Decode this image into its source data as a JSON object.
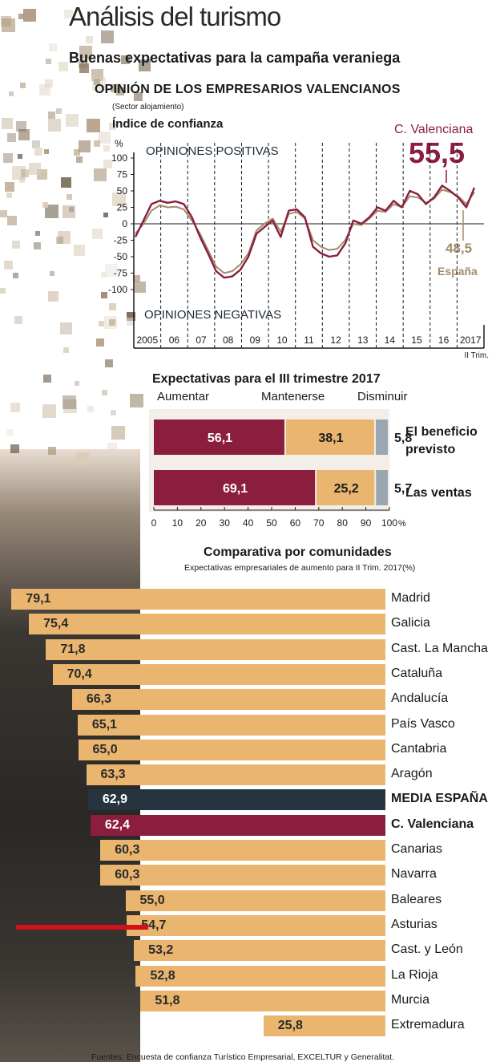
{
  "header": {
    "title": "Análisis del turismo",
    "subtitle": "Buenas expectativas para la campaña veraniega"
  },
  "colors": {
    "cv": "#8b1e3f",
    "espana": "#a08c6a",
    "aumentar": "#8b1e3f",
    "mantenerse": "#e9b56f",
    "disminuir": "#9aa6b0",
    "media": "#25343f",
    "bars": "#e9b56f",
    "highlight_line": "#d0121b"
  },
  "chart_data": [
    {
      "type": "line",
      "title": "OPINIÓN DE LOS EMPRESARIOS VALENCIANOS",
      "subtitle": "(Sector alojamiento)",
      "ylabel": "Índice de confianza",
      "yunit": "%",
      "ylim": [
        -100,
        100
      ],
      "yticks": [
        "100",
        "75",
        "50",
        "25",
        "0",
        "-25",
        "-50",
        "-75",
        "-100"
      ],
      "xticks": [
        "2005",
        "06",
        "07",
        "08",
        "09",
        "10",
        "11",
        "12",
        "13",
        "14",
        "15",
        "16",
        "2017"
      ],
      "xnote": "II Trim.",
      "annotation_top": "OPINIONES POSITIVAS",
      "annotation_bottom": "OPINIONES NEGATIVAS",
      "series": [
        {
          "name": "C. Valenciana",
          "last_value": "55,5",
          "values": [
            -20,
            5,
            30,
            35,
            32,
            34,
            30,
            10,
            -20,
            -45,
            -72,
            -82,
            -80,
            -70,
            -50,
            -15,
            -5,
            5,
            -20,
            20,
            22,
            10,
            -35,
            -45,
            -50,
            -48,
            -30,
            5,
            0,
            10,
            25,
            20,
            35,
            25,
            50,
            45,
            30,
            40,
            58,
            50,
            40,
            25,
            55
          ]
        },
        {
          "name": "España",
          "last_value": "48,5",
          "values": [
            -15,
            0,
            20,
            28,
            25,
            26,
            22,
            5,
            -15,
            -40,
            -65,
            -75,
            -72,
            -62,
            -45,
            -10,
            0,
            8,
            -12,
            15,
            18,
            8,
            -25,
            -35,
            -40,
            -38,
            -25,
            0,
            -2,
            8,
            20,
            18,
            30,
            25,
            42,
            40,
            32,
            38,
            52,
            48,
            42,
            30,
            48
          ]
        }
      ]
    },
    {
      "type": "bar",
      "title": "Expectativas para el III trimestre 2017",
      "stacked": true,
      "orientation": "horizontal",
      "categories": [
        "El beneficio previsto",
        "Las ventas"
      ],
      "series": [
        {
          "name": "Aumentar",
          "values": [
            56.1,
            69.1
          ],
          "labels": [
            "56,1",
            "69,1"
          ]
        },
        {
          "name": "Mantenerse",
          "values": [
            38.1,
            25.2
          ],
          "labels": [
            "38,1",
            "25,2"
          ]
        },
        {
          "name": "Disminuir",
          "values": [
            5.8,
            5.7
          ],
          "labels": [
            "5,8",
            "5,7"
          ]
        }
      ],
      "xlim": [
        0,
        100
      ],
      "xticks": [
        "0",
        "10",
        "20",
        "30",
        "40",
        "50",
        "60",
        "70",
        "80",
        "90",
        "100"
      ],
      "xunit": "%"
    },
    {
      "type": "bar",
      "title": "Comparativa por comunidades",
      "subtitle": "Expectativas empresariales de aumento para II Trim. 2017(%)",
      "orientation": "horizontal",
      "categories": [
        "Madrid",
        "Galicia",
        "Cast. La Mancha",
        "Cataluña",
        "Andalucía",
        "País Vasco",
        "Cantabria",
        "Aragón",
        "MEDIA ESPAÑA",
        "C. Valenciana",
        "Canarias",
        "Navarra",
        "Baleares",
        "Asturias",
        "Cast. y León",
        "La Rioja",
        "Murcia",
        "Extremadura"
      ],
      "values": [
        79.1,
        75.4,
        71.8,
        70.4,
        66.3,
        65.1,
        65.0,
        63.3,
        62.9,
        62.4,
        60.3,
        60.3,
        55.0,
        54.7,
        53.2,
        52.8,
        51.8,
        25.8
      ],
      "labels": [
        "79,1",
        "75,4",
        "71,8",
        "70,4",
        "66,3",
        "65,1",
        "65,0",
        "63,3",
        "62,9",
        "62,4",
        "60,3",
        "60,3",
        "55,0",
        "54,7",
        "53,2",
        "52,8",
        "51,8",
        "25,8"
      ],
      "highlight": {
        "MEDIA ESPAÑA": "media",
        "C. Valenciana": "cv"
      }
    }
  ],
  "footer": {
    "source": "Fuentes: Encuesta de confianza Turístico Empresarial, EXCELTUR y Generalitat."
  }
}
